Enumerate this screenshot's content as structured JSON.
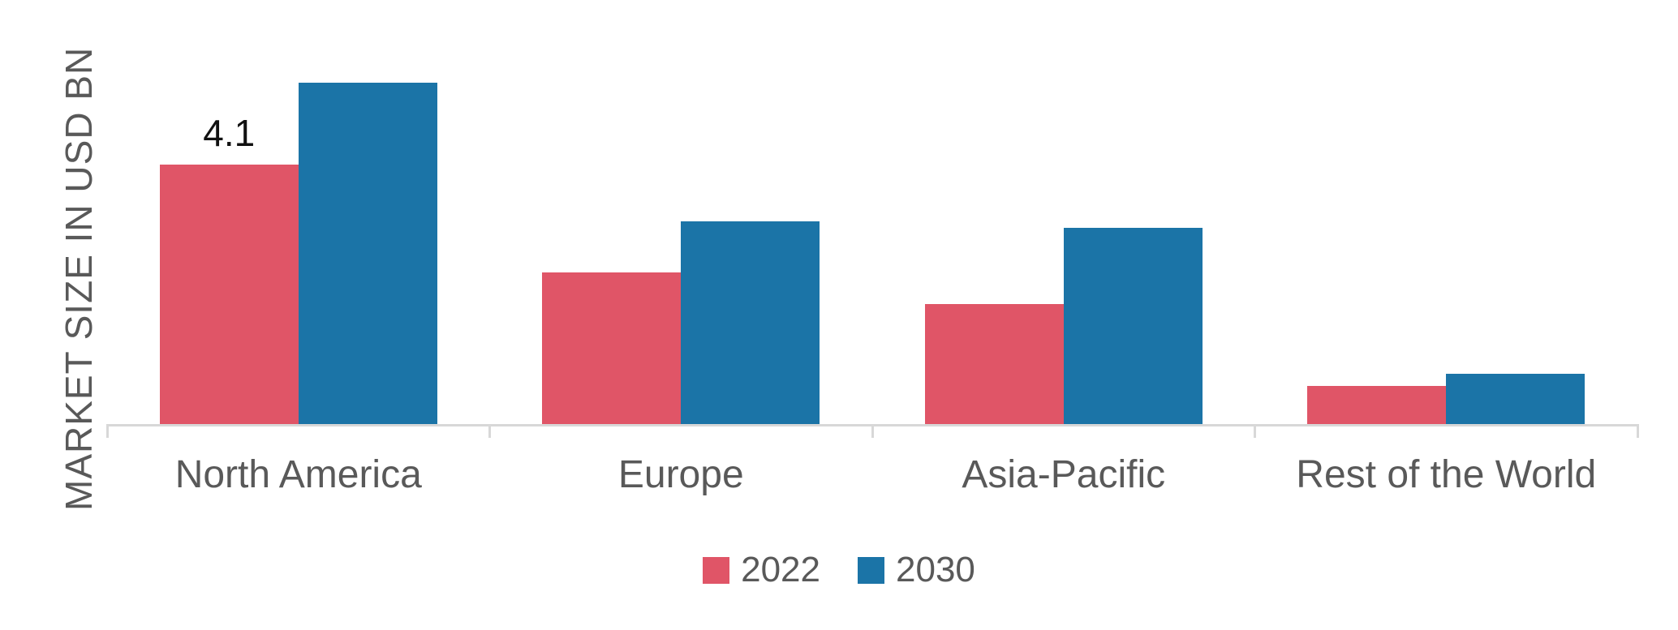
{
  "chart_data": {
    "type": "bar",
    "title": "",
    "ylabel": "MARKET SIZE IN USD BN",
    "xlabel": "",
    "categories": [
      "North America",
      "Europe",
      "Asia-Pacific",
      "Rest of the World"
    ],
    "series": [
      {
        "name": "2022",
        "color": "#e05567",
        "values": [
          4.1,
          2.4,
          1.9,
          0.6
        ]
      },
      {
        "name": "2030",
        "color": "#1b74a7",
        "values": [
          5.4,
          3.2,
          3.1,
          0.8
        ]
      }
    ],
    "data_labels": [
      {
        "series": "2022",
        "category": "North America",
        "text": "4.1"
      }
    ],
    "grid": false,
    "legend_position": "bottom"
  },
  "colors": {
    "axis": "#d8d8d8",
    "text": "#595959",
    "data_label": "#111111",
    "background": "#ffffff"
  }
}
